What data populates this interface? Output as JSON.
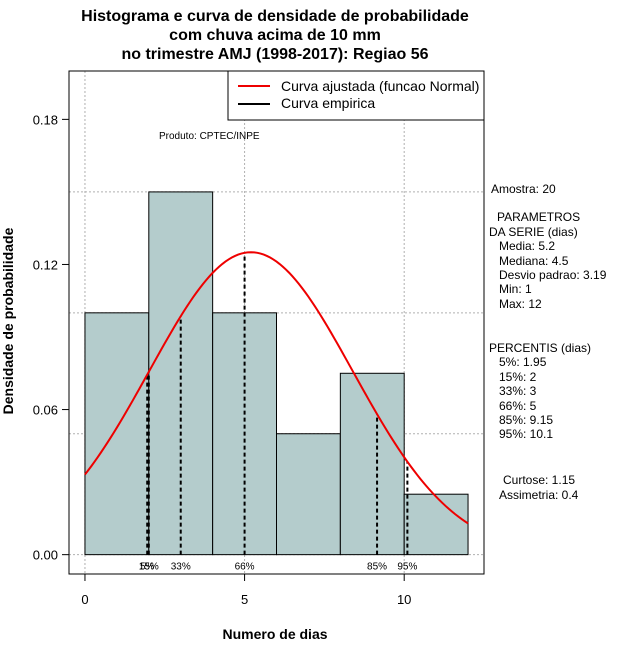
{
  "title": {
    "line1": "Histograma e curva de densidade de probabilidade",
    "line2": "com chuva acima de 10 mm",
    "line3": "no trimestre AMJ (1998-2017): Regiao 56"
  },
  "producer": "Produto: CPTEC/INPE",
  "legend": {
    "fitted": "Curva ajustada (funcao Normal)",
    "empirical": "Curva empirica"
  },
  "stats": {
    "sample": "Amostra: 20",
    "params_header1": "PARAMETROS",
    "params_header2": "DA SERIE (dias)",
    "media": "Media: 5.2",
    "mediana": "Mediana: 4.5",
    "desvio": "Desvio padrao: 3.19",
    "min": "Min: 1",
    "max": "Max: 12",
    "percentis_header": "PERCENTIS (dias)",
    "p5": "5%: 1.95",
    "p15": "15%: 2",
    "p33": "33%: 3",
    "p66": "66%: 5",
    "p85": "85%: 9.15",
    "p95": "95%: 10.1",
    "curtose": "Curtose: 1.15",
    "assimetria": "Assimetria: 0.4"
  },
  "colors": {
    "bar_fill": "#b4cccc",
    "curve": "#ee0000",
    "grid": "#b0b0b0"
  },
  "chart_data": {
    "type": "bar",
    "title": "Histograma e curva de densidade de probabilidade com chuva acima de 10 mm no trimestre AMJ (1998-2017): Regiao 56",
    "xlabel": "Numero de dias",
    "ylabel": "Densidade de probabilidade",
    "xlim": [
      -0.5,
      12.5
    ],
    "ylim": [
      -0.008,
      0.2
    ],
    "xticks": [
      0,
      5,
      10
    ],
    "yticks": [
      0.0,
      0.06,
      0.12,
      0.18
    ],
    "ytick_labels": [
      "0.00",
      "0.06",
      "0.12",
      "0.18"
    ],
    "bins": [
      {
        "x0": 0,
        "x1": 2,
        "density": 0.1
      },
      {
        "x0": 2,
        "x1": 4,
        "density": 0.15
      },
      {
        "x0": 4,
        "x1": 6,
        "density": 0.1
      },
      {
        "x0": 6,
        "x1": 8,
        "density": 0.05
      },
      {
        "x0": 8,
        "x1": 10,
        "density": 0.075
      },
      {
        "x0": 10,
        "x1": 12,
        "density": 0.025
      }
    ],
    "normal_fit": {
      "mean": 5.2,
      "sd": 3.19,
      "x_range": [
        0,
        12
      ]
    },
    "percentiles": [
      {
        "label": "5%",
        "x": 1.95
      },
      {
        "label": "15%",
        "x": 2
      },
      {
        "label": "33%",
        "x": 3
      },
      {
        "label": "66%",
        "x": 5
      },
      {
        "label": "85%",
        "x": 9.15
      },
      {
        "label": "95%",
        "x": 10.1
      }
    ],
    "grid": true,
    "legend_position": "top-right"
  }
}
